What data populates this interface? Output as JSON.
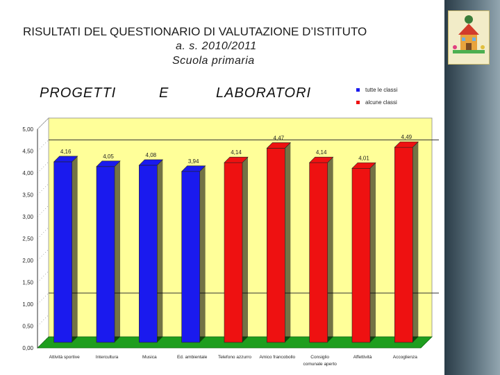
{
  "header": {
    "title": "RISULTATI DEL   QUESTIONARIO DI VALUTAZIONE D’ISTITUTO",
    "year": "a. s. 2010/2011",
    "school": "Scuola  primaria"
  },
  "sections": {
    "progetti": "PROGETTI",
    "e": "E",
    "laboratori": "LABORATORI"
  },
  "legend": [
    {
      "label": "tutte le classi",
      "color": "#1a1aee"
    },
    {
      "label": "alcune classi",
      "color": "#ee1111"
    }
  ],
  "logo": {
    "icon": "school-house-drawing-icon"
  },
  "chart_data": {
    "type": "bar",
    "categories": [
      "Attività sportive",
      "Intercultura",
      "Musica",
      "Ed. ambientale",
      "Telefono azzurro",
      "Amico francobollo",
      "Consiglio comunale aperto",
      "Affettività",
      "Accoglienza"
    ],
    "category_lines": [
      [
        "Attività sportive"
      ],
      [
        "Intercultura"
      ],
      [
        "Musica"
      ],
      [
        "Ed. ambientale"
      ],
      [
        "Telefono azzurro"
      ],
      [
        "Amico francobollo"
      ],
      [
        "Consiglio",
        "comunale aperto"
      ],
      [
        "Affettività"
      ],
      [
        "Accoglienza"
      ]
    ],
    "values": [
      4.16,
      4.05,
      4.08,
      3.94,
      4.14,
      4.47,
      4.14,
      4.01,
      4.49
    ],
    "value_labels": [
      "4,16",
      "4,05",
      "4,08",
      "3,94",
      "4,14",
      "4,47",
      "4,14",
      "4,01",
      "4,49"
    ],
    "groups": [
      "tutte le classi",
      "tutte le classi",
      "tutte le classi",
      "tutte le classi",
      "alcune classi",
      "alcune classi",
      "alcune classi",
      "alcune classi",
      "alcune classi"
    ],
    "colors": {
      "tutte le classi": "#1a1aee",
      "alcune classi": "#ee1111"
    },
    "ylim": [
      0,
      5
    ],
    "yticks": [
      0,
      0.5,
      1,
      1.5,
      2,
      2.5,
      3,
      3.5,
      4,
      4.5,
      5
    ],
    "ytick_labels": [
      "0,00",
      "0,50",
      "1,00",
      "1,50",
      "2,00",
      "2,50",
      "3,00",
      "3,50",
      "4,00",
      "4,50",
      "5,00"
    ],
    "reference_lines": [
      1,
      4.5
    ],
    "title": "",
    "xlabel": "",
    "ylabel": "",
    "background": "#ffff99",
    "floor_color": "#1e9e1e",
    "grid": false,
    "legend_position": "top-right"
  }
}
